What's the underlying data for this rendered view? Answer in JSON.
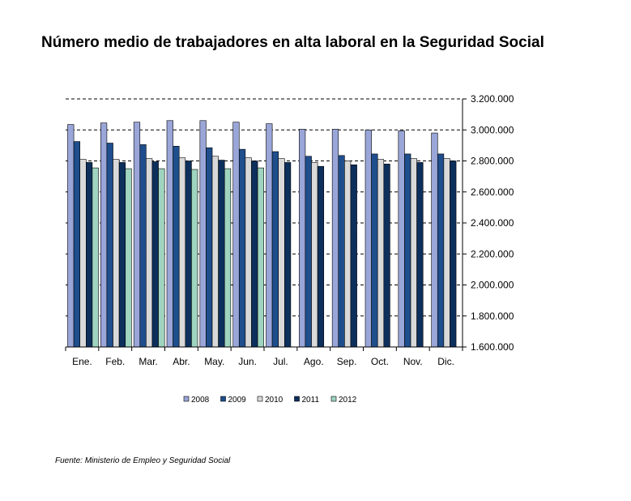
{
  "title": "Número medio de trabajadores en alta laboral en la Seguridad Social",
  "source": "Fuente: Ministerio de Empleo y Seguridad Social",
  "chart_data": {
    "type": "bar",
    "title": "Número medio de trabajadores en alta laboral en la Seguridad Social",
    "xlabel": "",
    "ylabel": "",
    "ylim": [
      1600000,
      3200000
    ],
    "yticks": [
      1600000,
      1800000,
      2000000,
      2200000,
      2400000,
      2600000,
      2800000,
      3000000,
      3200000
    ],
    "ytick_labels": [
      "1.600.000",
      "1.800.000",
      "2.000.000",
      "2.200.000",
      "2.400.000",
      "2.600.000",
      "2.800.000",
      "3.000.000",
      "3.200.000"
    ],
    "categories": [
      "Ene.",
      "Feb.",
      "Mar.",
      "Abr.",
      "May.",
      "Jun.",
      "Jul.",
      "Ago.",
      "Sep.",
      "Oct.",
      "Nov.",
      "Dic."
    ],
    "gridlines": "dashed, major y",
    "y_axis_position": "right",
    "legend_position": "bottom",
    "series": [
      {
        "name": "2008",
        "color": "#9aa6d8",
        "values": [
          3035000,
          3045000,
          3050000,
          3060000,
          3060000,
          3050000,
          3040000,
          3005000,
          3005000,
          3000000,
          2995000,
          2980000
        ]
      },
      {
        "name": "2009",
        "color": "#1f4e8c",
        "values": [
          2925000,
          2915000,
          2905000,
          2895000,
          2885000,
          2875000,
          2860000,
          2830000,
          2835000,
          2845000,
          2845000,
          2845000
        ]
      },
      {
        "name": "2010",
        "color": "#d9d9d9",
        "values": [
          2810000,
          2810000,
          2815000,
          2820000,
          2830000,
          2820000,
          2815000,
          2790000,
          2800000,
          2810000,
          2815000,
          2815000
        ]
      },
      {
        "name": "2011",
        "color": "#0d2f5c",
        "values": [
          2790000,
          2790000,
          2795000,
          2800000,
          2805000,
          2800000,
          2790000,
          2765000,
          2775000,
          2780000,
          2790000,
          2800000
        ]
      },
      {
        "name": "2012",
        "color": "#9fd4c0",
        "values": [
          2755000,
          2750000,
          2750000,
          2745000,
          2750000,
          2755000,
          null,
          null,
          null,
          null,
          null,
          null
        ]
      }
    ]
  }
}
